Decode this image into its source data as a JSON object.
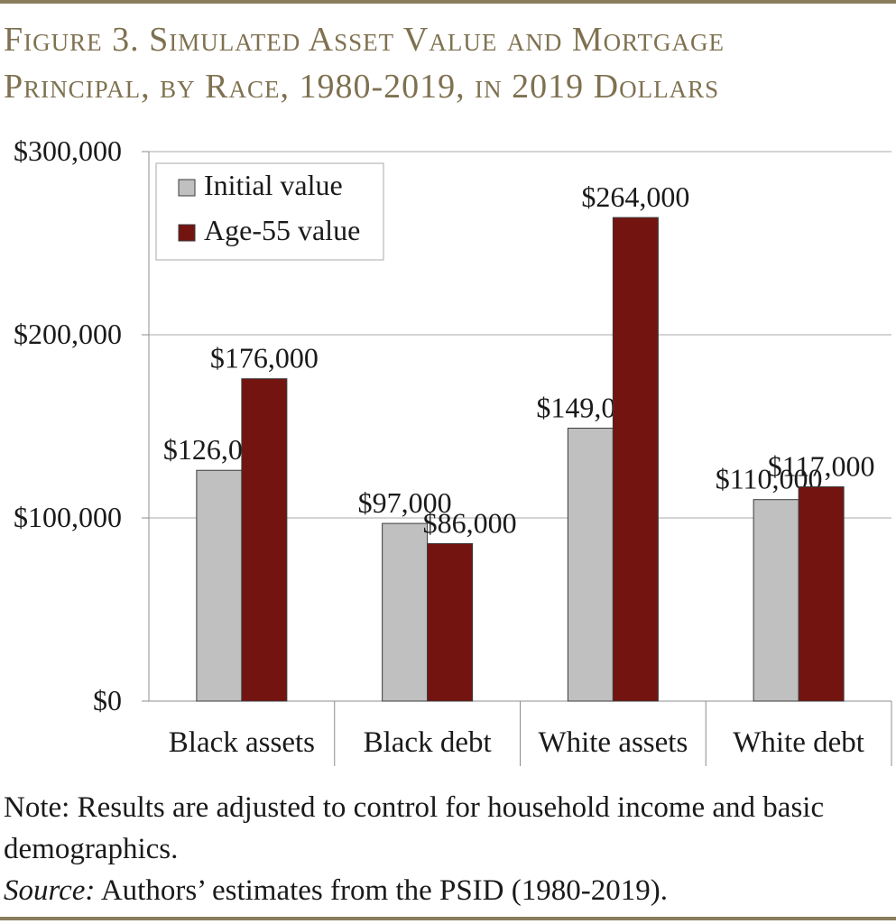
{
  "figure": {
    "title_line1": "Figure 3. Simulated Asset Value and Mortgage",
    "title_line2": "Principal, by Race, 1980-2019, in 2019 Dollars",
    "note": "Note: Results are adjusted to control for household income and basic demographics.",
    "source_label": "Source:",
    "source_text": " Authors’ estimates from the PSID (1980-2019)."
  },
  "colors": {
    "initial": "#c0c0c0",
    "age55": "#741410",
    "accent": "#8a7d5c"
  },
  "chart_data": {
    "type": "bar",
    "categories": [
      "Black assets",
      "Black debt",
      "White assets",
      "White debt"
    ],
    "series": [
      {
        "name": "Initial value",
        "values": [
          126000,
          97000,
          149000,
          110000
        ],
        "labels": [
          "$126,000",
          "$97,000",
          "$149,000",
          "$110,000"
        ]
      },
      {
        "name": "Age-55 value",
        "values": [
          176000,
          86000,
          264000,
          117000
        ],
        "labels": [
          "$176,000",
          "$86,000",
          "$264,000",
          "$117,000"
        ]
      }
    ],
    "yticks": [
      0,
      100000,
      200000,
      300000
    ],
    "ytick_labels": [
      "$0",
      "$100,000",
      "$200,000",
      "$300,000"
    ],
    "ylim": [
      0,
      300000
    ],
    "grid": true,
    "legend_position": "top-left"
  }
}
